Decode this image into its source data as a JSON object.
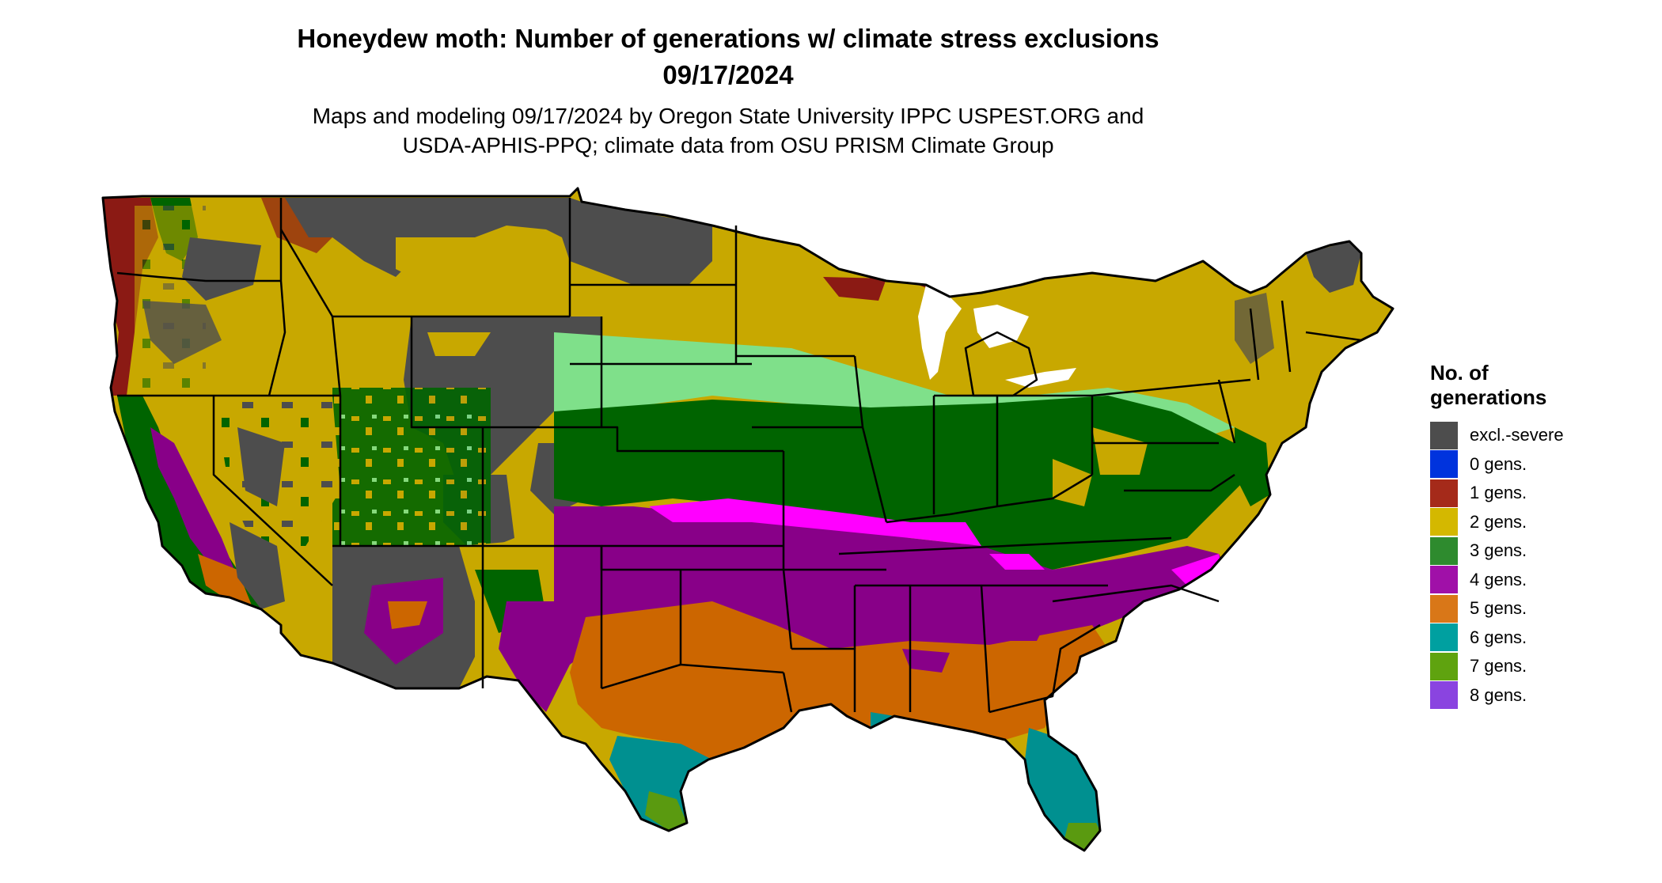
{
  "title": {
    "line1": "Honeydew moth: Number of generations w/ climate stress exclusions",
    "line2": "09/17/2024"
  },
  "subtitle": {
    "line1": "Maps and modeling 09/17/2024 by Oregon State University IPPC USPEST.ORG and",
    "line2": "USDA-APHIS-PPQ; climate data from OSU PRISM Climate Group"
  },
  "legend": {
    "title_line1": "No. of",
    "title_line2": "generations",
    "items": [
      {
        "label": "excl.-severe",
        "color": "#4d4d4d"
      },
      {
        "label": "0 gens.",
        "color": "#0033dd"
      },
      {
        "label": "1 gens.",
        "color": "#a52a1a"
      },
      {
        "label": "2 gens.",
        "color": "#d4b800"
      },
      {
        "label": "3 gens.",
        "color": "#2e8b2e"
      },
      {
        "label": "4 gens.",
        "color": "#a010a8"
      },
      {
        "label": "5 gens.",
        "color": "#d97718"
      },
      {
        "label": "6 gens.",
        "color": "#00a0a0"
      },
      {
        "label": "7 gens.",
        "color": "#5fa30f"
      },
      {
        "label": "8 gens.",
        "color": "#8a44e0"
      }
    ]
  },
  "map_colors": {
    "excl": "#4d4d4d",
    "one": "#8b1a14",
    "two": "#c8a800",
    "three": "#006400",
    "three_light": "#7fe08a",
    "four": "#880088",
    "four_bright": "#ff00ff",
    "five": "#cc6600",
    "six": "#009090",
    "seven": "#5a9a10",
    "border": "#000000"
  }
}
